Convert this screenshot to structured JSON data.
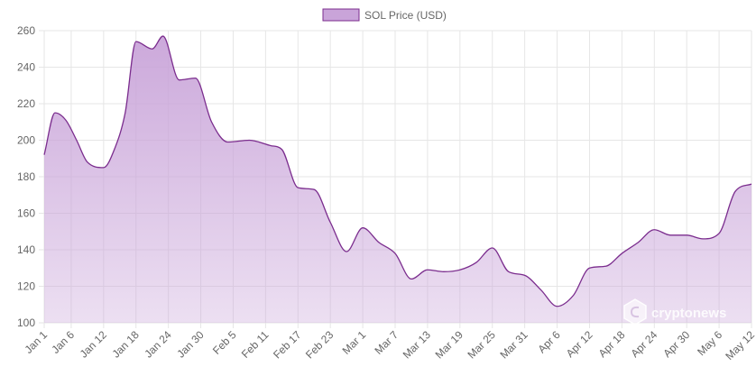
{
  "colors": {
    "line": "#7b2d8e",
    "fill": "#c9a4d9",
    "grid": "#e6e6e6",
    "tick": "#666666"
  },
  "watermark": {
    "text": "cryptonews",
    "icon": "cryptonews-logo-icon"
  },
  "chart_data": {
    "type": "area",
    "legend": {
      "label": "SOL Price (USD)",
      "position": "top-center"
    },
    "grid": true,
    "ylim": [
      100,
      260
    ],
    "yticks": [
      100,
      120,
      140,
      160,
      180,
      200,
      220,
      240,
      260
    ],
    "xlim": [
      0,
      131
    ],
    "xtick_labels": [
      "Jan 1",
      "Jan 6",
      "Jan 12",
      "Jan 18",
      "Jan 24",
      "Jan 30",
      "Feb 5",
      "Feb 11",
      "Feb 17",
      "Feb 23",
      "Mar 1",
      "Mar 7",
      "Mar 13",
      "Mar 19",
      "Mar 25",
      "Mar 31",
      "Apr 6",
      "Apr 12",
      "Apr 18",
      "Apr 24",
      "Apr 30",
      "May 6",
      "May 12"
    ],
    "series": [
      {
        "name": "SOL Price (USD)",
        "points": [
          [
            "Jan 1",
            192
          ],
          [
            "Jan 3",
            215
          ],
          [
            "Jan 5",
            211
          ],
          [
            "Jan 7",
            200
          ],
          [
            "Jan 9",
            188
          ],
          [
            "Jan 12",
            185
          ],
          [
            "Jan 14",
            195
          ],
          [
            "Jan 16",
            215
          ],
          [
            "Jan 18",
            254
          ],
          [
            "Jan 21",
            250
          ],
          [
            "Jan 23",
            257
          ],
          [
            "Jan 26",
            233
          ],
          [
            "Jan 29",
            234
          ],
          [
            "Feb 1",
            210
          ],
          [
            "Feb 4",
            199
          ],
          [
            "Feb 8",
            200
          ],
          [
            "Feb 12",
            197
          ],
          [
            "Feb 14",
            195
          ],
          [
            "Feb 17",
            174
          ],
          [
            "Feb 20",
            173
          ],
          [
            "Feb 23",
            155
          ],
          [
            "Feb 26",
            139
          ],
          [
            "Mar 1",
            152
          ],
          [
            "Mar 4",
            144
          ],
          [
            "Mar 7",
            138
          ],
          [
            "Mar 10",
            124
          ],
          [
            "Mar 13",
            129
          ],
          [
            "Mar 16",
            128
          ],
          [
            "Mar 19",
            129
          ],
          [
            "Mar 22",
            133
          ],
          [
            "Mar 25",
            141
          ],
          [
            "Mar 28",
            128
          ],
          [
            "Mar 31",
            126
          ],
          [
            "Apr 3",
            118
          ],
          [
            "Apr 6",
            109
          ],
          [
            "Apr 9",
            115
          ],
          [
            "Apr 12",
            130
          ],
          [
            "Apr 15",
            131
          ],
          [
            "Apr 18",
            138
          ],
          [
            "Apr 21",
            144
          ],
          [
            "Apr 24",
            151
          ],
          [
            "Apr 27",
            148
          ],
          [
            "Apr 30",
            148
          ],
          [
            "May 3",
            146
          ],
          [
            "May 6",
            149
          ],
          [
            "May 9",
            172
          ],
          [
            "May 12",
            176
          ]
        ]
      }
    ]
  }
}
